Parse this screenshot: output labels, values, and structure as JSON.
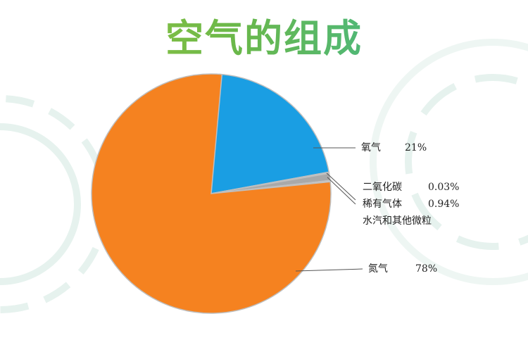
{
  "chart_data": {
    "type": "pie",
    "title": "空气的组成",
    "slices": [
      {
        "name": "氧气",
        "value": 21,
        "label": "21%",
        "color": "#1a9ee3"
      },
      {
        "name": "二氧化碳",
        "value": 0.03,
        "label": "0.03%",
        "color": "#c8c8c8"
      },
      {
        "name": "稀有气体",
        "value": 0.94,
        "label": "0.94%",
        "color": "#a9a9a9"
      },
      {
        "name": "水汽和其他微粒",
        "value": 0.03,
        "label": "",
        "color": "#d9d9d9"
      },
      {
        "name": "氮气",
        "value": 78,
        "label": "78%",
        "color": "#f58220"
      }
    ],
    "start": "top",
    "direction": "clockwise",
    "legend": "callouts-right"
  }
}
